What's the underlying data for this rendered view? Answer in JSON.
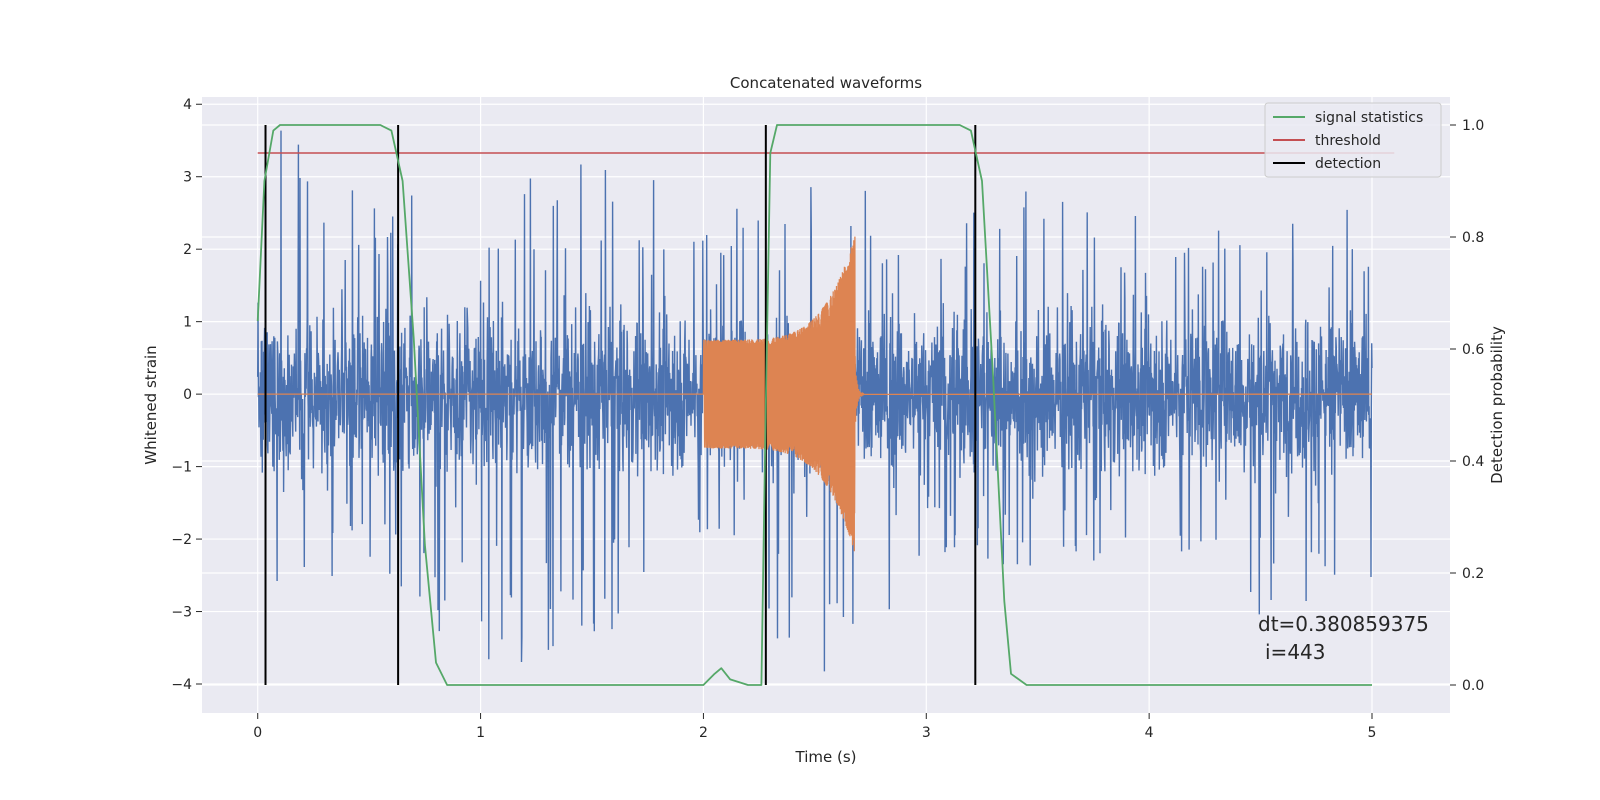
{
  "chart_data": {
    "type": "line",
    "title": "Concatenated waveforms",
    "xlabel": "Time (s)",
    "ylabel": "Whitened strain",
    "ylabel_right": "Detection probability",
    "xlim": [
      -0.25,
      5.35
    ],
    "ylim": [
      -4.4,
      4.1
    ],
    "ylim_right": [
      -0.05,
      1.05
    ],
    "xticks": [
      0,
      1,
      2,
      3,
      4,
      5
    ],
    "yticks": [
      -4,
      -3,
      -2,
      -1,
      0,
      1,
      2,
      3,
      4
    ],
    "yticks_right": [
      0.0,
      0.2,
      0.4,
      0.6,
      0.8,
      1.0
    ],
    "grid": true,
    "legend_position": "top-right",
    "colors": {
      "strain": "#4c72b0",
      "injection": "#dd8452",
      "statistic": "#55a868",
      "threshold": "#c44e52",
      "detection": "#000000",
      "background": "#eaeaf2",
      "grid": "#ffffff"
    },
    "series": [
      {
        "name": "",
        "role": "strain",
        "x_range": [
          0,
          5
        ],
        "envelope_upper": [
          [
            0,
            1.6
          ],
          [
            0.1,
            3.7
          ],
          [
            0.5,
            2.8
          ],
          [
            1.0,
            2.7
          ],
          [
            1.5,
            3.4
          ],
          [
            2.0,
            2.6
          ],
          [
            2.5,
            3.0
          ],
          [
            3.0,
            2.6
          ],
          [
            3.5,
            2.9
          ],
          [
            4.0,
            2.4
          ],
          [
            4.5,
            2.4
          ],
          [
            5.0,
            2.6
          ]
        ],
        "envelope_lower": [
          [
            0,
            -2.6
          ],
          [
            0.5,
            -2.6
          ],
          [
            0.97,
            -3.7
          ],
          [
            1.5,
            -3.8
          ],
          [
            2.0,
            -2.3
          ],
          [
            2.5,
            -4.0
          ],
          [
            3.0,
            -2.6
          ],
          [
            3.5,
            -2.5
          ],
          [
            4.0,
            -2.5
          ],
          [
            4.5,
            -3.1
          ],
          [
            5.0,
            -2.6
          ]
        ]
      },
      {
        "name": "",
        "role": "injection",
        "x_start": 2.0,
        "x_end": 2.68,
        "amplitude_start": 0.75,
        "amplitude_peak": 2.2
      },
      {
        "name": "signal statistics",
        "role": "statistic",
        "points": [
          [
            0.0,
            0.65
          ],
          [
            0.03,
            0.9
          ],
          [
            0.07,
            0.99
          ],
          [
            0.1,
            1.0
          ],
          [
            0.55,
            1.0
          ],
          [
            0.6,
            0.99
          ],
          [
            0.65,
            0.9
          ],
          [
            0.7,
            0.62
          ],
          [
            0.75,
            0.25
          ],
          [
            0.8,
            0.04
          ],
          [
            0.85,
            0.0
          ],
          [
            1.0,
            0.0
          ],
          [
            2.0,
            0.0
          ],
          [
            2.05,
            0.02
          ],
          [
            2.08,
            0.03
          ],
          [
            2.12,
            0.01
          ],
          [
            2.2,
            0.0
          ],
          [
            2.26,
            0.0
          ],
          [
            2.28,
            0.5
          ],
          [
            2.3,
            0.95
          ],
          [
            2.33,
            1.0
          ],
          [
            3.15,
            1.0
          ],
          [
            3.2,
            0.99
          ],
          [
            3.25,
            0.9
          ],
          [
            3.3,
            0.55
          ],
          [
            3.35,
            0.15
          ],
          [
            3.38,
            0.02
          ],
          [
            3.45,
            0.0
          ],
          [
            4.0,
            0.0
          ],
          [
            5.0,
            0.0
          ]
        ]
      },
      {
        "name": "threshold",
        "role": "threshold",
        "value": 0.95,
        "x_range": [
          0,
          5.1
        ]
      },
      {
        "name": "detection",
        "role": "detection",
        "x_positions": [
          0.035,
          0.63,
          2.28,
          3.22
        ],
        "y_range": [
          0,
          1
        ]
      }
    ],
    "annotations": [
      "dt=0.380859375",
      "i=443"
    ]
  }
}
